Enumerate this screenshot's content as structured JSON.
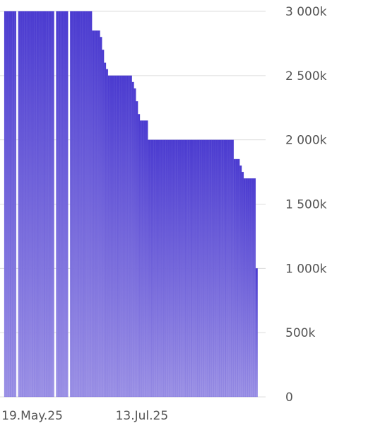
{
  "chart_data": {
    "type": "bar",
    "title": "",
    "xlabel": "",
    "ylabel": "",
    "ylim": [
      0,
      3000000
    ],
    "grid": true,
    "legend": "none",
    "bar_color_top": "#4b3bd0",
    "bar_color_bottom": "#9f95e6",
    "gridline_color": "#dcdcdc",
    "label_color": "#555555",
    "y_ticks": [
      {
        "value": 0,
        "label": "0"
      },
      {
        "value": 500000,
        "label": "500k"
      },
      {
        "value": 1000000,
        "label": "1 000k"
      },
      {
        "value": 1500000,
        "label": "1 500k"
      },
      {
        "value": 2000000,
        "label": "2 000k"
      },
      {
        "value": 2500000,
        "label": "2 500k"
      },
      {
        "value": 3000000,
        "label": "3 000k"
      }
    ],
    "x_ticks": [
      {
        "date": "2025-05-19",
        "label": "19.May.25"
      },
      {
        "date": "2025-07-13",
        "label": "13.Jul.25"
      }
    ],
    "x_start": "2025-05-05",
    "x_end": "2025-09-13",
    "daily": [
      {
        "from": "2025-05-05",
        "to": "2025-05-10",
        "value": 3000000
      },
      {
        "from": "2025-05-12",
        "to": "2025-05-29",
        "value": 3000000
      },
      {
        "from": "2025-05-31",
        "to": "2025-06-05",
        "value": 3000000
      },
      {
        "from": "2025-06-07",
        "to": "2025-06-17",
        "value": 3000000
      },
      {
        "from": "2025-06-18",
        "to": "2025-06-21",
        "value": 2850000
      },
      {
        "from": "2025-06-22",
        "to": "2025-06-22",
        "value": 2800000
      },
      {
        "from": "2025-06-23",
        "to": "2025-06-23",
        "value": 2700000
      },
      {
        "from": "2025-06-24",
        "to": "2025-06-24",
        "value": 2600000
      },
      {
        "from": "2025-06-25",
        "to": "2025-06-25",
        "value": 2550000
      },
      {
        "from": "2025-06-26",
        "to": "2025-07-07",
        "value": 2500000
      },
      {
        "from": "2025-07-08",
        "to": "2025-07-08",
        "value": 2450000
      },
      {
        "from": "2025-07-09",
        "to": "2025-07-09",
        "value": 2400000
      },
      {
        "from": "2025-07-10",
        "to": "2025-07-10",
        "value": 2300000
      },
      {
        "from": "2025-07-11",
        "to": "2025-07-11",
        "value": 2200000
      },
      {
        "from": "2025-07-12",
        "to": "2025-07-15",
        "value": 2150000
      },
      {
        "from": "2025-07-16",
        "to": "2025-08-27",
        "value": 2000000
      },
      {
        "from": "2025-08-28",
        "to": "2025-08-30",
        "value": 1850000
      },
      {
        "from": "2025-08-31",
        "to": "2025-08-31",
        "value": 1800000
      },
      {
        "from": "2025-09-01",
        "to": "2025-09-01",
        "value": 1750000
      },
      {
        "from": "2025-09-02",
        "to": "2025-09-07",
        "value": 1700000
      },
      {
        "from": "2025-09-08",
        "to": "2025-09-08",
        "value": 1000000
      }
    ]
  }
}
